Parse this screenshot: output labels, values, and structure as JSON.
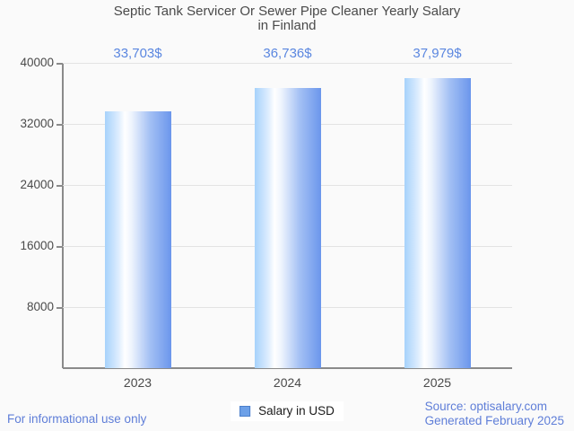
{
  "title": {
    "line1": "Septic Tank Servicer Or Sewer Pipe Cleaner Yearly Salary",
    "line2": "in Finland"
  },
  "chart_data": {
    "type": "bar",
    "categories": [
      "2023",
      "2024",
      "2025"
    ],
    "values": [
      33703,
      36736,
      37979
    ],
    "value_labels": [
      "33,703$",
      "36,736$",
      "37,979$"
    ],
    "series_name": "Salary in USD",
    "title": "Septic Tank Servicer Or Sewer Pipe Cleaner Yearly Salary in Finland",
    "xlabel": "",
    "ylabel": "",
    "ylim": [
      0,
      40000
    ],
    "y_ticks": [
      40000,
      32000,
      24000,
      16000,
      8000
    ],
    "grid": true,
    "legend_position": "bottom-center"
  },
  "legend": {
    "label": "Salary in USD"
  },
  "footer": {
    "disclaimer": "For informational use only",
    "source_line1": "Source: optisalary.com",
    "source_line2": "Generated February 2025"
  },
  "colors": {
    "background": "#fafafa",
    "text_dark": "#4a4a4a",
    "text_blue": "#5b87e0",
    "footer_blue": "#5f7ed8",
    "gridline": "#e3e3e3",
    "x_axis": "#8a8a8a",
    "bar_left": "#a6d2fb",
    "bar_highlight": "#ffffff",
    "bar_right": "#6b96ec",
    "legend_marker_fill": "#6ca0e8",
    "legend_marker_border": "#4b7fcb",
    "legend_text": "#1a1a1a",
    "legend_bg": "#ffffff"
  }
}
